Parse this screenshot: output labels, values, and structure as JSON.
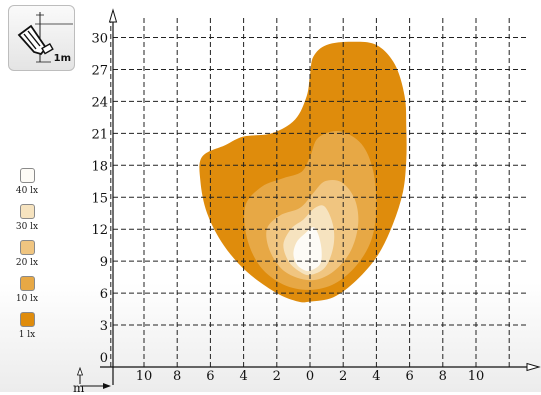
{
  "badge": {
    "label": "1m",
    "icon": "headlamp-mount-height-icon"
  },
  "legend": {
    "items": [
      {
        "label": "40 lx",
        "color": "#fdfbf6"
      },
      {
        "label": "30 lx",
        "color": "#f6e3bf"
      },
      {
        "label": "20 lx",
        "color": "#f0c580"
      },
      {
        "label": "10 lx",
        "color": "#e7a845"
      },
      {
        "label": "1 lx",
        "color": "#df8c0c"
      }
    ]
  },
  "chart_data": {
    "type": "area",
    "title": "",
    "xlabel": "m",
    "ylabel": "",
    "x_ticks": [
      "10",
      "8",
      "6",
      "4",
      "2",
      "0",
      "2",
      "4",
      "6",
      "8",
      "10"
    ],
    "y_ticks": [
      0,
      3,
      6,
      9,
      12,
      15,
      18,
      21,
      24,
      27,
      30
    ],
    "xlim": [
      -12,
      12
    ],
    "ylim": [
      0,
      32
    ],
    "grid": true,
    "series": [
      {
        "name": "1 lx",
        "color": "#df8c0c",
        "points": [
          [
            0,
            5.2
          ],
          [
            1.4,
            5.6
          ],
          [
            2.8,
            7.2
          ],
          [
            4.1,
            9.6
          ],
          [
            5.0,
            12.5
          ],
          [
            5.6,
            15.5
          ],
          [
            5.8,
            18.5
          ],
          [
            5.8,
            21.5
          ],
          [
            5.7,
            24.5
          ],
          [
            5.1,
            27.5
          ],
          [
            4.0,
            29.3
          ],
          [
            2.5,
            29.6
          ],
          [
            1.0,
            29.3
          ],
          [
            0.2,
            28.2
          ],
          [
            0,
            26.5
          ],
          [
            -0.2,
            24.5
          ],
          [
            -0.9,
            22.3
          ],
          [
            -2.3,
            21.0
          ],
          [
            -4.0,
            20.7
          ],
          [
            -5.1,
            19.9
          ],
          [
            -6.5,
            18.8
          ],
          [
            -6.6,
            16.5
          ],
          [
            -6.2,
            13.5
          ],
          [
            -5.2,
            10.5
          ],
          [
            -3.8,
            8.0
          ],
          [
            -2.0,
            6.0
          ],
          [
            -0.7,
            5.2
          ]
        ]
      },
      {
        "name": "10 lx",
        "color": "#e7a845",
        "points": [
          [
            0,
            6.3
          ],
          [
            1.5,
            6.9
          ],
          [
            2.8,
            8.6
          ],
          [
            3.7,
            11.0
          ],
          [
            4.0,
            14.0
          ],
          [
            3.8,
            17.5
          ],
          [
            3.1,
            20.0
          ],
          [
            1.8,
            21.2
          ],
          [
            0.5,
            20.6
          ],
          [
            0,
            18.8
          ],
          [
            -0.5,
            17.4
          ],
          [
            -1.6,
            16.8
          ],
          [
            -2.9,
            16.0
          ],
          [
            -3.9,
            14.2
          ],
          [
            -3.8,
            11.2
          ],
          [
            -3.0,
            8.5
          ],
          [
            -1.6,
            6.8
          ]
        ]
      },
      {
        "name": "20 lx",
        "color": "#f0c580",
        "points": [
          [
            0,
            7.2
          ],
          [
            1.3,
            7.9
          ],
          [
            2.4,
            9.8
          ],
          [
            2.9,
            12.4
          ],
          [
            2.7,
            14.8
          ],
          [
            1.9,
            16.4
          ],
          [
            0.9,
            16.5
          ],
          [
            0.2,
            15.4
          ],
          [
            -0.6,
            14.0
          ],
          [
            -1.8,
            13.3
          ],
          [
            -2.6,
            12.0
          ],
          [
            -2.4,
            9.9
          ],
          [
            -1.5,
            8.0
          ]
        ]
      },
      {
        "name": "30 lx",
        "color": "#f6e3bf",
        "points": [
          [
            0,
            7.7
          ],
          [
            0.9,
            8.4
          ],
          [
            1.4,
            10.3
          ],
          [
            1.4,
            12.3
          ],
          [
            0.9,
            14.1
          ],
          [
            0.3,
            14.0
          ],
          [
            -0.4,
            12.9
          ],
          [
            -1.1,
            12.1
          ],
          [
            -1.6,
            10.6
          ],
          [
            -1.3,
            9.0
          ],
          [
            -0.6,
            8.0
          ]
        ]
      },
      {
        "name": "40 lx",
        "color": "#fdfbf6",
        "points": [
          [
            0,
            8.1
          ],
          [
            0.6,
            8.7
          ],
          [
            0.7,
            10.0
          ],
          [
            0.5,
            11.5
          ],
          [
            0.2,
            12.2
          ],
          [
            -0.3,
            11.6
          ],
          [
            -0.8,
            10.8
          ],
          [
            -1.0,
            9.7
          ],
          [
            -0.8,
            8.7
          ],
          [
            -0.4,
            8.2
          ]
        ]
      }
    ]
  }
}
